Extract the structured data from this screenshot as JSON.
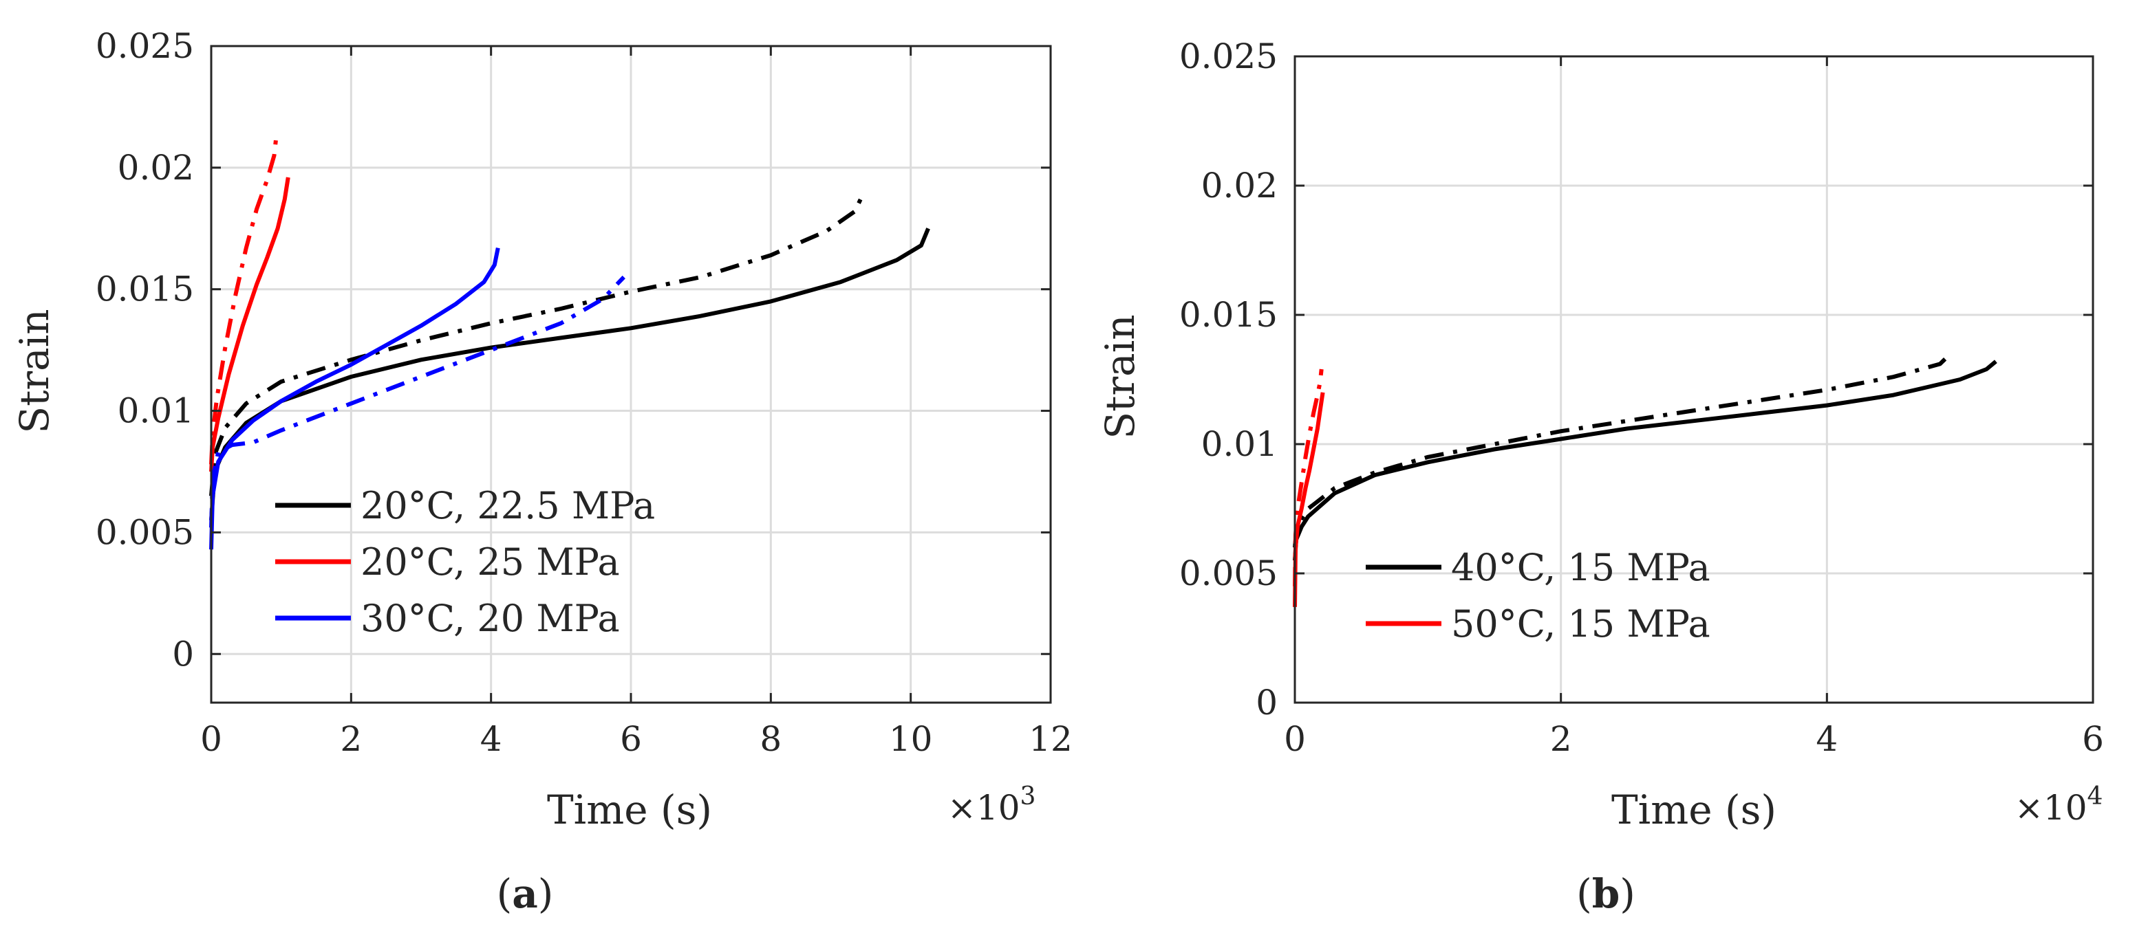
{
  "chart_data": [
    {
      "panel": "a",
      "type": "line",
      "caption": {
        "open": "(",
        "letter": "a",
        "close": ")"
      },
      "xlabel": "Time (s)",
      "ylabel": "Strain",
      "x_multiplier": {
        "base": "×10",
        "exp": "3"
      },
      "xlim": [
        0,
        12
      ],
      "ylim": [
        -0.002,
        0.025
      ],
      "xticks": [
        0,
        2,
        4,
        6,
        8,
        10,
        12
      ],
      "xtick_labels": [
        "0",
        "2",
        "4",
        "6",
        "8",
        "10",
        "12"
      ],
      "yticks": [
        0,
        0.005,
        0.01,
        0.015,
        0.02,
        0.025
      ],
      "ytick_labels": [
        "0",
        "0.005",
        "0.01",
        "0.015",
        "0.02",
        "0.025"
      ],
      "grid": true,
      "legend_position": "bottom-left",
      "legend": [
        {
          "label": "20°C, 22.5 MPa",
          "color": "#000000"
        },
        {
          "label": "20°C, 25 MPa",
          "color": "#ff0000"
        },
        {
          "label": "30°C, 20 MPa",
          "color": "#0000ff"
        }
      ],
      "series": [
        {
          "name": "20°C, 22.5 MPa",
          "style": "solid",
          "color": "#000000",
          "x": [
            0,
            0.05,
            0.2,
            0.5,
            1.0,
            2.0,
            3.0,
            4.0,
            5.0,
            6.0,
            7.0,
            8.0,
            9.0,
            9.8,
            10.15,
            10.25
          ],
          "y": [
            0.0055,
            0.0075,
            0.0085,
            0.0095,
            0.0104,
            0.0114,
            0.0121,
            0.0126,
            0.013,
            0.0134,
            0.0139,
            0.0145,
            0.0153,
            0.0162,
            0.0168,
            0.0175
          ]
        },
        {
          "name": "20°C, 22.5 MPa (dash-dot)",
          "style": "dashdot",
          "color": "#000000",
          "x": [
            0,
            0.05,
            0.2,
            0.5,
            1.0,
            2.0,
            3.0,
            4.0,
            5.0,
            6.0,
            7.0,
            8.0,
            8.8,
            9.2,
            9.3
          ],
          "y": [
            0.0065,
            0.0082,
            0.0093,
            0.0103,
            0.0112,
            0.0121,
            0.0129,
            0.0136,
            0.0142,
            0.0149,
            0.0155,
            0.0164,
            0.0174,
            0.0182,
            0.0188
          ]
        },
        {
          "name": "20°C, 25 MPa",
          "style": "solid",
          "color": "#ff0000",
          "x": [
            0,
            0.02,
            0.1,
            0.25,
            0.45,
            0.65,
            0.8,
            0.95,
            1.05,
            1.1
          ],
          "y": [
            0.0075,
            0.0085,
            0.0097,
            0.0115,
            0.0135,
            0.0152,
            0.0163,
            0.0175,
            0.0187,
            0.0196
          ]
        },
        {
          "name": "20°C, 25 MPa (dash-dot)",
          "style": "dashdot",
          "color": "#ff0000",
          "x": [
            0,
            0.02,
            0.08,
            0.2,
            0.35,
            0.5,
            0.65,
            0.8,
            0.9,
            0.93
          ],
          "y": [
            0.0078,
            0.009,
            0.0105,
            0.0126,
            0.0148,
            0.0167,
            0.0183,
            0.0195,
            0.0205,
            0.0213
          ]
        },
        {
          "name": "30°C, 20 MPa",
          "style": "solid",
          "color": "#0000ff",
          "x": [
            0,
            0.02,
            0.1,
            0.3,
            0.6,
            1.0,
            1.5,
            2.0,
            2.5,
            3.0,
            3.5,
            3.9,
            4.05,
            4.1
          ],
          "y": [
            0.0043,
            0.0065,
            0.0079,
            0.0088,
            0.0096,
            0.0104,
            0.0112,
            0.0119,
            0.0127,
            0.0135,
            0.0144,
            0.0153,
            0.016,
            0.0167
          ]
        },
        {
          "name": "30°C, 20 MPa (dash-dot)",
          "style": "dashdot",
          "color": "#0000ff",
          "x": [
            0,
            0.02,
            0.1,
            0.3,
            0.6,
            1.0,
            2.0,
            3.0,
            4.0,
            5.0,
            5.6,
            5.9
          ],
          "y": [
            0.0052,
            0.0072,
            0.0083,
            0.0086,
            0.0087,
            0.0092,
            0.0103,
            0.0114,
            0.0125,
            0.0136,
            0.0146,
            0.0155
          ]
        }
      ]
    },
    {
      "panel": "b",
      "type": "line",
      "caption": {
        "open": "(",
        "letter": "b",
        "close": ")"
      },
      "xlabel": "Time (s)",
      "ylabel": "Strain",
      "x_multiplier": {
        "base": "×10",
        "exp": "4"
      },
      "xlim": [
        0,
        6
      ],
      "ylim": [
        0,
        0.025
      ],
      "xticks": [
        0,
        2,
        4,
        6
      ],
      "xtick_labels": [
        "0",
        "2",
        "4",
        "6"
      ],
      "yticks": [
        0,
        0.005,
        0.01,
        0.015,
        0.02,
        0.025
      ],
      "ytick_labels": [
        "0",
        "0.005",
        "0.01",
        "0.015",
        "0.02",
        "0.025"
      ],
      "grid": true,
      "legend_position": "bottom-left",
      "legend": [
        {
          "label": "40°C, 15 MPa",
          "color": "#000000"
        },
        {
          "label": "50°C, 15 MPa",
          "color": "#ff0000"
        }
      ],
      "series": [
        {
          "name": "40°C, 15 MPa",
          "style": "solid",
          "color": "#000000",
          "x": [
            0,
            0.01,
            0.05,
            0.1,
            0.3,
            0.6,
            1.0,
            1.5,
            2.0,
            2.5,
            3.0,
            3.5,
            4.0,
            4.5,
            5.0,
            5.2,
            5.27
          ],
          "y": [
            0.0055,
            0.0063,
            0.0068,
            0.0072,
            0.0081,
            0.0088,
            0.0093,
            0.0098,
            0.0102,
            0.0106,
            0.0109,
            0.0112,
            0.0115,
            0.0119,
            0.0125,
            0.0129,
            0.0132
          ]
        },
        {
          "name": "40°C, 15 MPa (dash-dot)",
          "style": "dashdot",
          "color": "#000000",
          "x": [
            0,
            0.01,
            0.05,
            0.1,
            0.3,
            0.6,
            1.0,
            1.5,
            2.0,
            2.5,
            3.0,
            3.5,
            4.0,
            4.5,
            4.85,
            4.93
          ],
          "y": [
            0.006,
            0.0066,
            0.0071,
            0.0075,
            0.0083,
            0.0089,
            0.0095,
            0.01,
            0.0105,
            0.0109,
            0.0113,
            0.0117,
            0.0121,
            0.0126,
            0.0131,
            0.0135
          ]
        },
        {
          "name": "50°C, 15 MPa",
          "style": "solid",
          "color": "#ff0000",
          "x": [
            0,
            0.005,
            0.02,
            0.05,
            0.08,
            0.11,
            0.14,
            0.17,
            0.19,
            0.21
          ],
          "y": [
            0.0037,
            0.006,
            0.0068,
            0.0075,
            0.0083,
            0.009,
            0.0098,
            0.0106,
            0.0113,
            0.012
          ]
        },
        {
          "name": "50°C, 15 MPa (dash-dot)",
          "style": "dashdot",
          "color": "#ff0000",
          "x": [
            0,
            0.005,
            0.02,
            0.05,
            0.08,
            0.11,
            0.14,
            0.17,
            0.19,
            0.2
          ],
          "y": [
            0.0045,
            0.0065,
            0.0075,
            0.0085,
            0.0095,
            0.0104,
            0.0112,
            0.0119,
            0.0124,
            0.0129
          ]
        }
      ]
    }
  ]
}
